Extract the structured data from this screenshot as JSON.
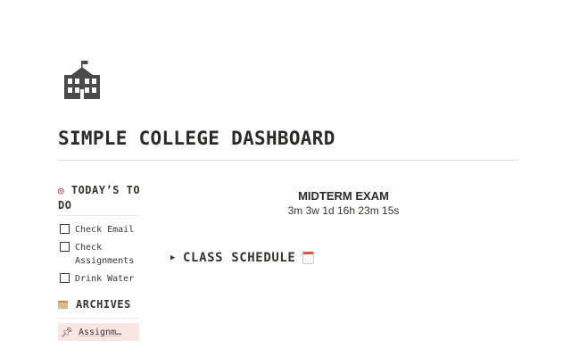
{
  "page": {
    "icon": "school-building-icon",
    "title": "SIMPLE COLLEGE DASHBOARD"
  },
  "todo": {
    "heading": "TODAY’S TO DO",
    "icon": "target-icon",
    "items": [
      {
        "label": "Check Email",
        "checked": false
      },
      {
        "label": "Check Assignments",
        "checked": false
      },
      {
        "label": "Drink Water",
        "checked": false
      }
    ]
  },
  "archives": {
    "heading": "ARCHIVES",
    "icon": "card-file-box-icon",
    "link": {
      "label": "Assignm…",
      "icon": "pushpin-icon"
    }
  },
  "countdown": {
    "name": "MIDTERM EXAM",
    "remaining": "3m 3w 1d 16h 23m 15s"
  },
  "schedule": {
    "label": "CLASS SCHEDULE",
    "icon": "calendar-icon",
    "collapsed": true
  },
  "colors": {
    "text": "#37352f",
    "highlight": "#fbe4e4",
    "divider": "#e3e2e0"
  }
}
